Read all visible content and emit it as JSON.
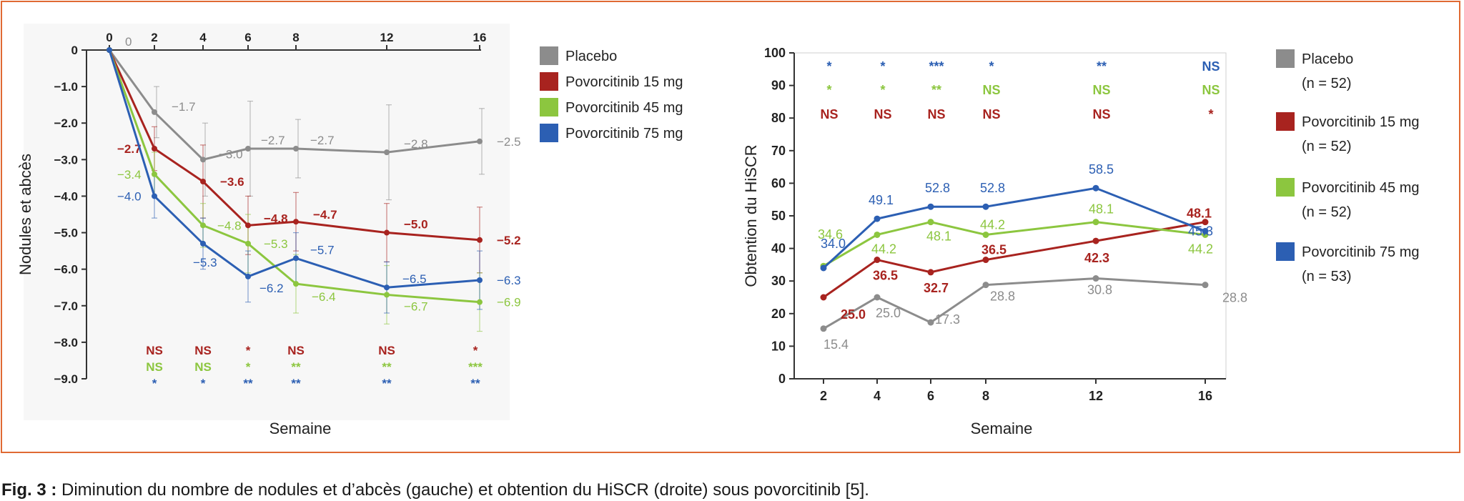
{
  "caption": {
    "label": "Fig. 3 :",
    "text": "Diminution du nombre de nodules et d’abcès (gauche) et obtention du HiSCR (droite) sous povorcitinib [5]."
  },
  "colors": {
    "placebo": "#8c8c8c",
    "povo15": "#a8231f",
    "povo45": "#8cc63f",
    "povo75": "#2c5fb3",
    "border": "#e06a33"
  },
  "chart_data": [
    {
      "type": "line",
      "title": "",
      "xlabel": "Semaine",
      "ylabel": "Nodules et abcès",
      "x": [
        0,
        2,
        4,
        6,
        8,
        12,
        16
      ],
      "xticks": [
        "0",
        "2",
        "4",
        "6",
        "8",
        "12",
        "16"
      ],
      "ylim": [
        -9.0,
        0
      ],
      "yticks": [
        "0",
        "−1.0",
        "−2.0",
        "−3.0",
        "−4.0",
        "−5.0",
        "−6.0",
        "−7.0",
        "−8.0",
        "−9.0"
      ],
      "x_axis_position": "top",
      "legend_position": "right",
      "series": [
        {
          "name": "Placebo",
          "key": "placebo",
          "values": [
            0,
            -1.7,
            -3.0,
            -2.7,
            -2.7,
            -2.8,
            -2.5
          ],
          "labels": [
            "0",
            "−1.7",
            "−3.0",
            "−2.7",
            "−2.7",
            "−2.8",
            "−2.5"
          ],
          "errors": [
            0,
            0.7,
            1.0,
            1.3,
            0.8,
            1.3,
            0.9
          ]
        },
        {
          "name": "Povorcitinib 15 mg",
          "key": "povo15",
          "values": [
            0,
            -2.7,
            -3.6,
            -4.8,
            -4.7,
            -5.0,
            -5.2
          ],
          "labels": [
            "",
            "−2.7",
            "−3.6",
            "−4.8",
            "−4.7",
            "−5.0",
            "−5.2"
          ],
          "errors": [
            0,
            0.6,
            1.0,
            0.8,
            0.8,
            0.8,
            0.9
          ]
        },
        {
          "name": "Povorcitinib 45 mg",
          "key": "povo45",
          "values": [
            0,
            -3.4,
            -4.8,
            -5.3,
            -6.4,
            -6.7,
            -6.9
          ],
          "labels": [
            "",
            "−3.4",
            "−4.8",
            "−5.3",
            "−6.4",
            "−6.7",
            "−6.9"
          ],
          "errors": [
            0,
            0.6,
            0.6,
            0.8,
            0.8,
            0.8,
            0.8
          ]
        },
        {
          "name": "Povorcitinib 75 mg",
          "key": "povo75",
          "values": [
            0,
            -4.0,
            -5.3,
            -6.2,
            -5.7,
            -6.5,
            -6.3
          ],
          "labels": [
            "",
            "−4.0",
            "−5.3",
            "−6.2",
            "−5.7",
            "−6.5",
            "−6.3"
          ],
          "errors": [
            0,
            0.6,
            0.7,
            0.7,
            0.7,
            0.7,
            0.8
          ]
        }
      ],
      "significance": [
        {
          "key": "povo15",
          "x": [
            2,
            4,
            6,
            8,
            12,
            16
          ],
          "marks": [
            "NS",
            "NS",
            "*",
            "NS",
            "NS",
            "*"
          ]
        },
        {
          "key": "povo45",
          "x": [
            2,
            4,
            6,
            8,
            12,
            16
          ],
          "marks": [
            "NS",
            "NS",
            "*",
            "**",
            "**",
            "***"
          ]
        },
        {
          "key": "povo75",
          "x": [
            2,
            4,
            6,
            8,
            12,
            16
          ],
          "marks": [
            "*",
            "*",
            "**",
            "**",
            "**",
            "**"
          ]
        }
      ]
    },
    {
      "type": "line",
      "title": "",
      "xlabel": "Semaine",
      "ylabel": "Obtention du HiSCR",
      "x": [
        2,
        4,
        6,
        8,
        12,
        16
      ],
      "xticks": [
        "2",
        "4",
        "6",
        "8",
        "12",
        "16"
      ],
      "ylim": [
        0,
        100
      ],
      "yticks": [
        "0",
        "10",
        "20",
        "30",
        "40",
        "50",
        "60",
        "70",
        "80",
        "90",
        "100"
      ],
      "legend_position": "right",
      "series": [
        {
          "name": "Placebo",
          "n": "(n = 52)",
          "key": "placebo",
          "values": [
            15.4,
            25.0,
            17.3,
            28.8,
            30.8,
            28.8
          ],
          "labels": [
            "15.4",
            "25.0",
            "17.3",
            "28.8",
            "30.8",
            "28.8"
          ]
        },
        {
          "name": "Povorcitinib 15 mg",
          "n": "(n = 52)",
          "key": "povo15",
          "values": [
            25.0,
            36.5,
            32.7,
            36.5,
            42.3,
            48.1
          ],
          "labels": [
            "25.0",
            "36.5",
            "32.7",
            "36.5",
            "42.3",
            "48.1"
          ]
        },
        {
          "name": "Povorcitinib 45 mg",
          "n": "(n = 52)",
          "key": "povo45",
          "values": [
            34.6,
            44.2,
            48.1,
            44.2,
            48.1,
            44.2
          ],
          "labels": [
            "34.6",
            "44.2",
            "48.1",
            "44.2",
            "48.1",
            "44.2"
          ]
        },
        {
          "name": "Povorcitinib 75 mg",
          "n": "(n = 53)",
          "key": "povo75",
          "values": [
            34.0,
            49.1,
            52.8,
            52.8,
            58.5,
            45.3
          ],
          "labels": [
            "34.0",
            "49.1",
            "52.8",
            "52.8",
            "58.5",
            "45.3"
          ]
        }
      ],
      "significance": [
        {
          "key": "povo75",
          "x": [
            2,
            4,
            6,
            8,
            12,
            16
          ],
          "marks": [
            "*",
            "*",
            "***",
            "*",
            "**",
            "NS"
          ]
        },
        {
          "key": "povo45",
          "x": [
            2,
            4,
            6,
            8,
            12,
            16
          ],
          "marks": [
            "*",
            "*",
            "**",
            "NS",
            "NS",
            "NS"
          ]
        },
        {
          "key": "povo15",
          "x": [
            2,
            4,
            6,
            8,
            12,
            16
          ],
          "marks": [
            "NS",
            "NS",
            "NS",
            "NS",
            "NS",
            "*"
          ]
        }
      ]
    }
  ]
}
